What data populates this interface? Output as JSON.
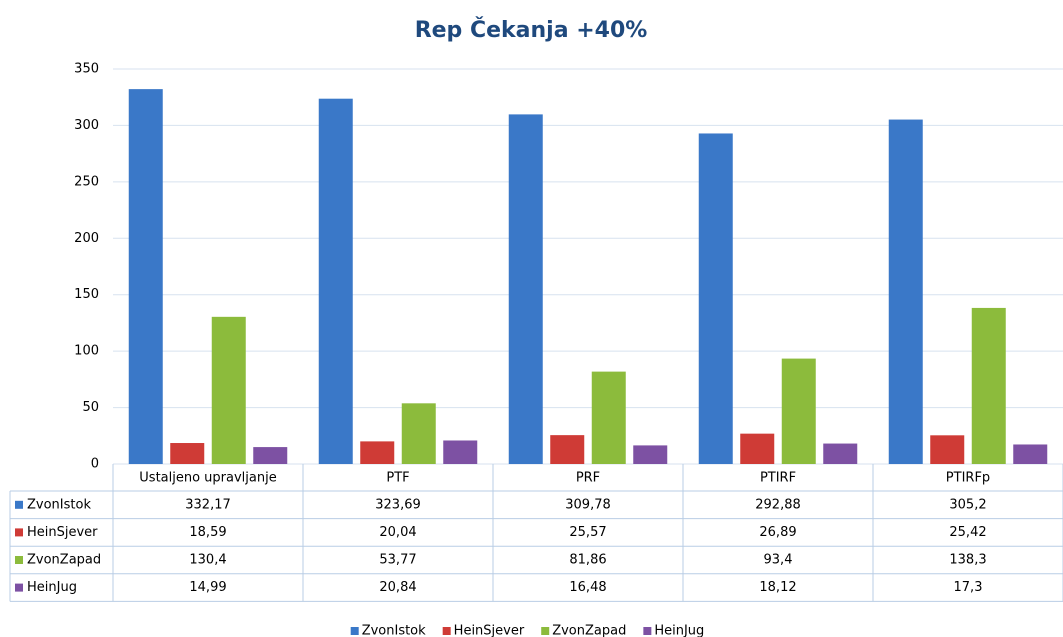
{
  "chart_data": {
    "type": "bar",
    "title": "Rep Čekanja +40%",
    "categories": [
      "Ustaljeno upravljanje",
      "PTF",
      "PRF",
      "PTIRF",
      "PTIRFp"
    ],
    "series": [
      {
        "name": "ZvonIstok",
        "color": "#3a78c8",
        "values": [
          332.17,
          323.69,
          309.78,
          292.88,
          305.2
        ],
        "value_labels": [
          "332,17",
          "323,69",
          "309,78",
          "292,88",
          "305,2"
        ]
      },
      {
        "name": "HeinSjever",
        "color": "#cf3b36",
        "values": [
          18.59,
          20.04,
          25.57,
          26.89,
          25.42
        ],
        "value_labels": [
          "18,59",
          "20,04",
          "25,57",
          "26,89",
          "25,42"
        ]
      },
      {
        "name": "ZvonZapad",
        "color": "#8cbb3c",
        "values": [
          130.4,
          53.77,
          81.86,
          93.4,
          138.3
        ],
        "value_labels": [
          "130,4",
          "53,77",
          "81,86",
          "93,4",
          "138,3"
        ]
      },
      {
        "name": "HeinJug",
        "color": "#7d51a3",
        "values": [
          14.99,
          20.84,
          16.48,
          18.12,
          17.3
        ],
        "value_labels": [
          "14,99",
          "20,84",
          "16,48",
          "18,12",
          "17,3"
        ]
      }
    ],
    "ylim": [
      0,
      350
    ],
    "yticks": [
      0,
      50,
      100,
      150,
      200,
      250,
      300,
      350
    ],
    "grid": true,
    "legend": "bottom"
  }
}
